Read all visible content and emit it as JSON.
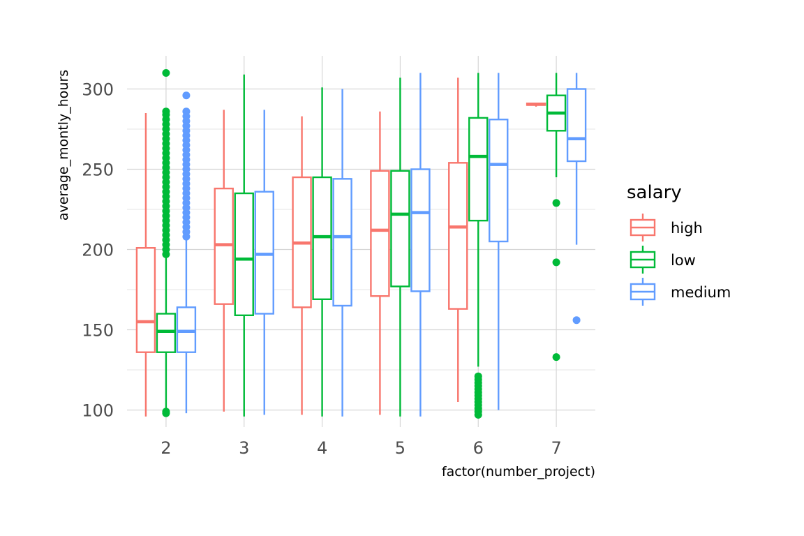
{
  "chart_data": {
    "type": "boxplot",
    "title": "",
    "xlabel": "factor(number_project)",
    "ylabel": "average_montly_hours",
    "categories": [
      "2",
      "3",
      "4",
      "5",
      "6",
      "7"
    ],
    "y_ticks": [
      100,
      150,
      200,
      250,
      300
    ],
    "ylim": [
      90,
      320
    ],
    "grid": true,
    "legend": {
      "title": "salary",
      "position": "right"
    },
    "series": [
      {
        "name": "high",
        "color": "#F8766D",
        "boxes": [
          {
            "category": "2",
            "min": 96,
            "q1": 136,
            "median": 155,
            "q3": 201,
            "max": 285,
            "outliers": []
          },
          {
            "category": "3",
            "min": 99,
            "q1": 166,
            "median": 203,
            "q3": 238,
            "max": 287,
            "outliers": []
          },
          {
            "category": "4",
            "min": 97,
            "q1": 164,
            "median": 204,
            "q3": 245,
            "max": 283,
            "outliers": []
          },
          {
            "category": "5",
            "min": 97,
            "q1": 171,
            "median": 212,
            "q3": 249,
            "max": 286,
            "outliers": []
          },
          {
            "category": "6",
            "min": 105,
            "q1": 163,
            "median": 214,
            "q3": 254,
            "max": 307,
            "outliers": []
          },
          {
            "category": "7",
            "min": 289,
            "q1": 290,
            "median": 290.5,
            "q3": 291,
            "max": 291,
            "outliers": []
          }
        ]
      },
      {
        "name": "low",
        "color": "#00BA38",
        "boxes": [
          {
            "category": "2",
            "min": 97,
            "q1": 136,
            "median": 149,
            "q3": 160,
            "max": 196,
            "outliers": [
              98,
              99,
              197,
              200,
              203,
              206,
              209,
              212,
              215,
              218,
              221,
              224,
              227,
              230,
              233,
              236,
              239,
              242,
              245,
              248,
              251,
              254,
              257,
              260,
              263,
              266,
              269,
              272,
              275,
              278,
              281,
              284,
              286,
              310
            ]
          },
          {
            "category": "3",
            "min": 96,
            "q1": 159,
            "median": 194,
            "q3": 235,
            "max": 309,
            "outliers": []
          },
          {
            "category": "4",
            "min": 96,
            "q1": 169,
            "median": 208,
            "q3": 245,
            "max": 301,
            "outliers": []
          },
          {
            "category": "5",
            "min": 96,
            "q1": 177,
            "median": 222,
            "q3": 249,
            "max": 307,
            "outliers": []
          },
          {
            "category": "6",
            "min": 127,
            "q1": 218,
            "median": 258,
            "q3": 282,
            "max": 310,
            "outliers": [
              97,
              99,
              101,
              103,
              105,
              107,
              109,
              111,
              113,
              115,
              117,
              119,
              121
            ]
          },
          {
            "category": "7",
            "min": 245,
            "q1": 274,
            "median": 285,
            "q3": 296,
            "max": 310,
            "outliers": [
              229,
              192,
              133
            ]
          }
        ]
      },
      {
        "name": "medium",
        "color": "#619CFF",
        "boxes": [
          {
            "category": "2",
            "min": 98,
            "q1": 136,
            "median": 149,
            "q3": 164,
            "max": 206,
            "outliers": [
              208,
              211,
              214,
              217,
              220,
              223,
              226,
              229,
              232,
              235,
              238,
              241,
              244,
              247,
              250,
              253,
              256,
              259,
              262,
              265,
              268,
              271,
              274,
              277,
              280,
              283,
              286,
              296
            ]
          },
          {
            "category": "3",
            "min": 97,
            "q1": 160,
            "median": 197,
            "q3": 236,
            "max": 287,
            "outliers": []
          },
          {
            "category": "4",
            "min": 96,
            "q1": 165,
            "median": 208,
            "q3": 244,
            "max": 300,
            "outliers": []
          },
          {
            "category": "5",
            "min": 96,
            "q1": 174,
            "median": 223,
            "q3": 250,
            "max": 310,
            "outliers": []
          },
          {
            "category": "6",
            "min": 100,
            "q1": 205,
            "median": 253,
            "q3": 281,
            "max": 310,
            "outliers": []
          },
          {
            "category": "7",
            "min": 203,
            "q1": 255,
            "median": 269,
            "q3": 300,
            "max": 310,
            "outliers": [
              156
            ]
          }
        ]
      }
    ]
  }
}
